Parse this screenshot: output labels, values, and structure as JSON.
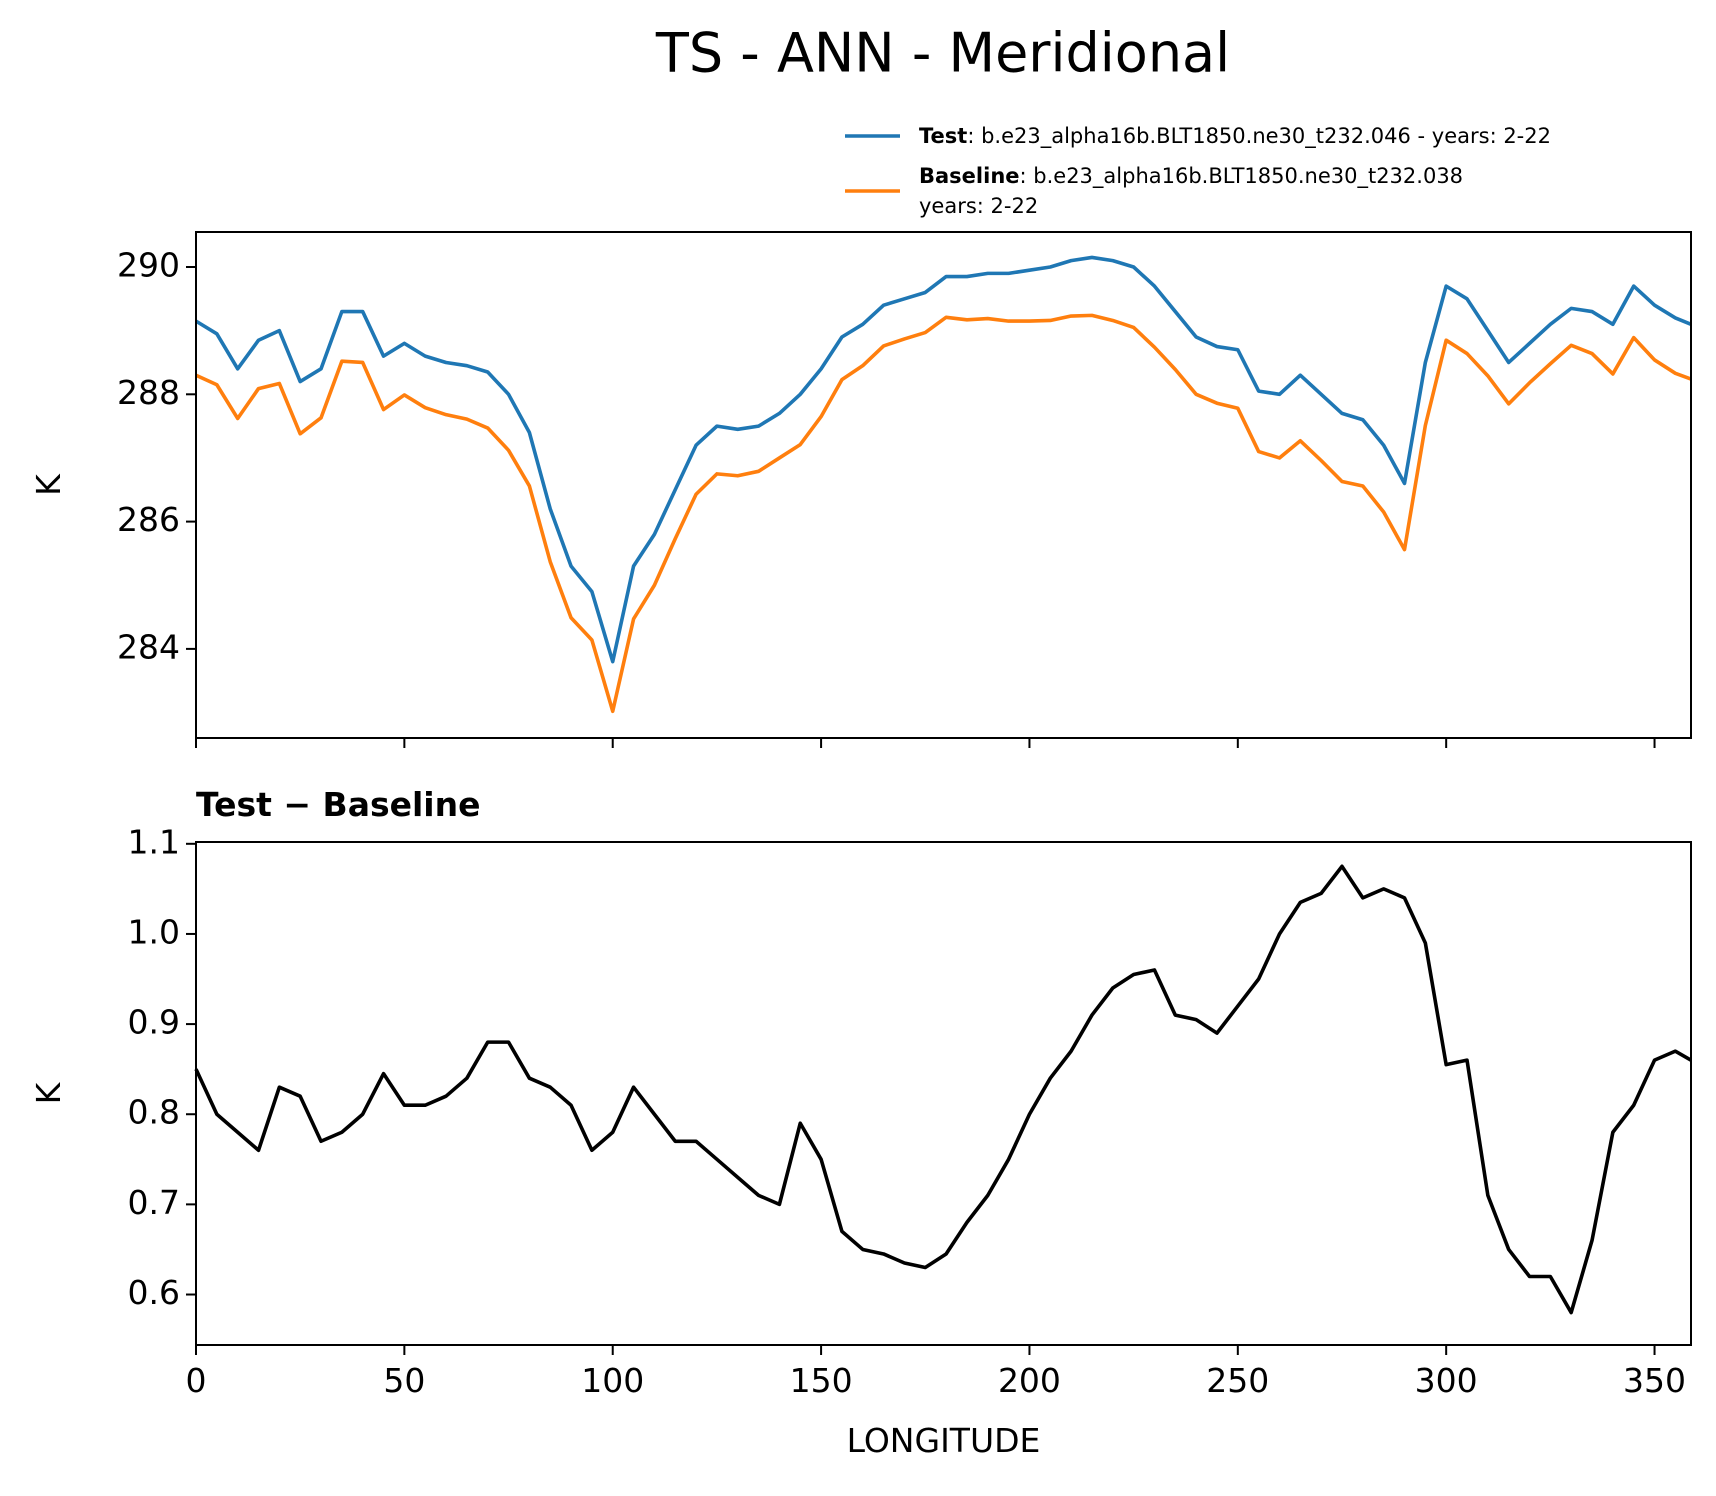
{
  "title": "TS - ANN - Meridional",
  "chart_data": [
    {
      "type": "line",
      "ylabel": "K",
      "x": [
        0,
        5,
        10,
        15,
        20,
        25,
        30,
        35,
        40,
        45,
        50,
        55,
        60,
        65,
        70,
        75,
        80,
        85,
        90,
        95,
        100,
        105,
        110,
        115,
        120,
        125,
        130,
        135,
        140,
        145,
        150,
        155,
        160,
        165,
        170,
        175,
        180,
        185,
        190,
        195,
        200,
        205,
        210,
        215,
        220,
        225,
        230,
        235,
        240,
        245,
        250,
        255,
        260,
        265,
        270,
        275,
        280,
        285,
        290,
        295,
        300,
        305,
        310,
        315,
        320,
        325,
        330,
        335,
        340,
        345,
        350,
        355,
        358.75
      ],
      "series": [
        {
          "name": "Test",
          "description": [
            ": b.e23_alpha16b.BLT1850.ne30_t232.046 - years: 2-22"
          ],
          "color": "#1f77b4",
          "values": [
            289.15,
            288.95,
            288.4,
            288.85,
            289.0,
            288.2,
            288.4,
            289.3,
            289.3,
            288.6,
            288.8,
            288.6,
            288.5,
            288.45,
            288.35,
            288.0,
            287.4,
            286.2,
            285.3,
            284.9,
            283.8,
            285.3,
            285.8,
            286.5,
            287.2,
            287.5,
            287.45,
            287.5,
            287.7,
            288.0,
            288.4,
            288.9,
            289.1,
            289.4,
            289.5,
            289.6,
            289.85,
            289.85,
            289.9,
            289.9,
            289.95,
            290.0,
            290.1,
            290.15,
            290.1,
            290.0,
            289.7,
            289.3,
            288.9,
            288.75,
            288.7,
            288.05,
            288.0,
            288.3,
            288.0,
            287.7,
            287.6,
            287.2,
            286.6,
            288.5,
            289.7,
            289.5,
            289.0,
            288.5,
            288.8,
            289.1,
            289.35,
            289.3,
            289.1,
            289.7,
            289.4,
            289.2,
            289.1
          ]
        },
        {
          "name": "Baseline",
          "description": [
            ": b.e23_alpha16b.BLT1850.ne30_t232.038",
            "years: 2-22"
          ],
          "color": "#ff7f0e",
          "values": [
            288.3,
            288.15,
            287.62,
            288.09,
            288.17,
            287.38,
            287.63,
            288.52,
            288.5,
            287.76,
            287.99,
            287.79,
            287.68,
            287.61,
            287.47,
            287.12,
            286.56,
            285.37,
            284.49,
            284.14,
            283.02,
            284.47,
            285.0,
            285.73,
            286.43,
            286.75,
            286.72,
            286.79,
            287.0,
            287.21,
            287.65,
            288.23,
            288.45,
            288.76,
            288.87,
            288.97,
            289.21,
            289.17,
            289.19,
            289.15,
            289.15,
            289.16,
            289.23,
            289.24,
            289.16,
            289.05,
            288.74,
            288.39,
            288.0,
            287.86,
            287.78,
            287.1,
            287.0,
            287.27,
            286.96,
            286.63,
            286.56,
            286.15,
            285.56,
            287.51,
            288.85,
            288.64,
            288.29,
            287.85,
            288.18,
            288.48,
            288.77,
            288.64,
            288.32,
            288.89,
            288.54,
            288.33,
            288.24
          ]
        }
      ],
      "xlim": [
        0,
        358.75
      ],
      "xticks": [
        0,
        50,
        100,
        150,
        200,
        250,
        300,
        350
      ],
      "show_xtick_labels": false,
      "ylim": [
        282.6,
        290.55
      ],
      "yticks": [
        284,
        286,
        288,
        290
      ]
    },
    {
      "type": "line",
      "title": "Test − Baseline",
      "ylabel": "K",
      "xlabel": "LONGITUDE",
      "x": [
        0,
        5,
        10,
        15,
        20,
        25,
        30,
        35,
        40,
        45,
        50,
        55,
        60,
        65,
        70,
        75,
        80,
        85,
        90,
        95,
        100,
        105,
        110,
        115,
        120,
        125,
        130,
        135,
        140,
        145,
        150,
        155,
        160,
        165,
        170,
        175,
        180,
        185,
        190,
        195,
        200,
        205,
        210,
        215,
        220,
        225,
        230,
        235,
        240,
        245,
        250,
        255,
        260,
        265,
        270,
        275,
        280,
        285,
        290,
        295,
        300,
        305,
        310,
        315,
        320,
        325,
        330,
        335,
        340,
        345,
        350,
        355,
        358.75
      ],
      "series": [
        {
          "color": "#000000",
          "values": [
            0.85,
            0.8,
            0.78,
            0.76,
            0.83,
            0.82,
            0.77,
            0.78,
            0.8,
            0.845,
            0.81,
            0.81,
            0.82,
            0.84,
            0.88,
            0.88,
            0.84,
            0.83,
            0.81,
            0.76,
            0.78,
            0.83,
            0.8,
            0.77,
            0.77,
            0.75,
            0.73,
            0.71,
            0.7,
            0.79,
            0.75,
            0.67,
            0.65,
            0.645,
            0.635,
            0.63,
            0.645,
            0.68,
            0.71,
            0.75,
            0.8,
            0.84,
            0.87,
            0.91,
            0.94,
            0.955,
            0.96,
            0.91,
            0.905,
            0.89,
            0.92,
            0.95,
            1.0,
            1.035,
            1.045,
            1.075,
            1.04,
            1.05,
            1.04,
            0.99,
            0.855,
            0.86,
            0.71,
            0.65,
            0.62,
            0.62,
            0.58,
            0.66,
            0.78,
            0.81,
            0.86,
            0.87,
            0.86
          ]
        }
      ],
      "xlim": [
        0,
        358.75
      ],
      "xticks": [
        0,
        50,
        100,
        150,
        200,
        250,
        300,
        350
      ],
      "show_xtick_labels": true,
      "ylim": [
        0.544,
        1.102
      ],
      "yticks": [
        {
          "value": 0.6,
          "label": "0.6"
        },
        {
          "value": 0.7,
          "label": "0.7"
        },
        {
          "value": 0.8,
          "label": "0.8"
        },
        {
          "value": 0.9,
          "label": "0.9"
        },
        {
          "value": 1.0,
          "label": "1.0"
        },
        {
          "value": 1.1,
          "label": "1.1"
        }
      ]
    }
  ]
}
